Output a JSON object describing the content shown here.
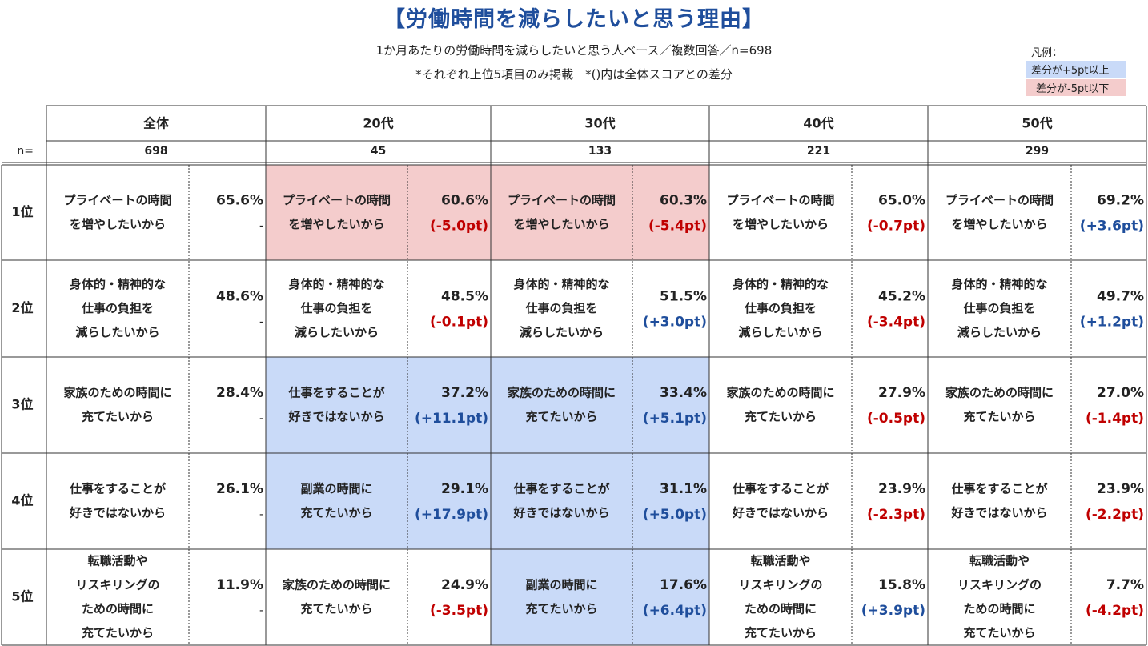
{
  "title": "【労働時間を減らしたいと思う理由】",
  "subtitle": "1か月あたりの労働時間を減らしたいと思う人ベース／複数回答／n=698",
  "note": "*それぞれ上位5項目のみ掲載　*()内は全体スコアとの差分",
  "legend": {
    "title": "凡例：",
    "positive": "差分が+5pt以上",
    "negative": "差分が-5pt以下"
  },
  "colors": {
    "title": "#1f4e9c",
    "positive_fill": "#c9daf8",
    "negative_fill": "#f4cccc",
    "positive_text": "#1f4e9c",
    "negative_text": "#c00000"
  },
  "chart_data": {
    "type": "table",
    "n_label": "n=",
    "rank_labels": [
      "1位",
      "2位",
      "3位",
      "4位",
      "5位"
    ],
    "groups": [
      {
        "name": "全体",
        "n": "698",
        "rows": [
          {
            "reason": [
              "プライベートの時間",
              "を増やしたいから"
            ],
            "value": "65.6%",
            "diff": "-",
            "highlight": "none"
          },
          {
            "reason": [
              "身体的・精神的な",
              "仕事の負担を",
              "減らしたいから"
            ],
            "value": "48.6%",
            "diff": "-",
            "highlight": "none"
          },
          {
            "reason": [
              "家族のための時間に",
              "充てたいから"
            ],
            "value": "28.4%",
            "diff": "-",
            "highlight": "none"
          },
          {
            "reason": [
              "仕事をすることが",
              "好きではないから"
            ],
            "value": "26.1%",
            "diff": "-",
            "highlight": "none"
          },
          {
            "reason": [
              "転職活動や",
              "リスキリングの",
              "ための時間に",
              "充てたいから"
            ],
            "value": "11.9%",
            "diff": "-",
            "highlight": "none"
          }
        ]
      },
      {
        "name": "20代",
        "n": "45",
        "rows": [
          {
            "reason": [
              "プライベートの時間",
              "を増やしたいから"
            ],
            "value": "60.6%",
            "diff": "(-5.0pt)",
            "highlight": "negative"
          },
          {
            "reason": [
              "身体的・精神的な",
              "仕事の負担を",
              "減らしたいから"
            ],
            "value": "48.5%",
            "diff": "(-0.1pt)",
            "highlight": "none"
          },
          {
            "reason": [
              "仕事をすることが",
              "好きではないから"
            ],
            "value": "37.2%",
            "diff": "(+11.1pt)",
            "highlight": "positive"
          },
          {
            "reason": [
              "副業の時間に",
              "充てたいから"
            ],
            "value": "29.1%",
            "diff": "(+17.9pt)",
            "highlight": "positive"
          },
          {
            "reason": [
              "家族のための時間に",
              "充てたいから"
            ],
            "value": "24.9%",
            "diff": "(-3.5pt)",
            "highlight": "none"
          }
        ]
      },
      {
        "name": "30代",
        "n": "133",
        "rows": [
          {
            "reason": [
              "プライベートの時間",
              "を増やしたいから"
            ],
            "value": "60.3%",
            "diff": "(-5.4pt)",
            "highlight": "negative"
          },
          {
            "reason": [
              "身体的・精神的な",
              "仕事の負担を",
              "減らしたいから"
            ],
            "value": "51.5%",
            "diff": "(+3.0pt)",
            "highlight": "none"
          },
          {
            "reason": [
              "家族のための時間に",
              "充てたいから"
            ],
            "value": "33.4%",
            "diff": "(+5.1pt)",
            "highlight": "positive"
          },
          {
            "reason": [
              "仕事をすることが",
              "好きではないから"
            ],
            "value": "31.1%",
            "diff": "(+5.0pt)",
            "highlight": "positive"
          },
          {
            "reason": [
              "副業の時間に",
              "充てたいから"
            ],
            "value": "17.6%",
            "diff": "(+6.4pt)",
            "highlight": "positive"
          }
        ]
      },
      {
        "name": "40代",
        "n": "221",
        "rows": [
          {
            "reason": [
              "プライベートの時間",
              "を増やしたいから"
            ],
            "value": "65.0%",
            "diff": "(-0.7pt)",
            "highlight": "none"
          },
          {
            "reason": [
              "身体的・精神的な",
              "仕事の負担を",
              "減らしたいから"
            ],
            "value": "45.2%",
            "diff": "(-3.4pt)",
            "highlight": "none"
          },
          {
            "reason": [
              "家族のための時間に",
              "充てたいから"
            ],
            "value": "27.9%",
            "diff": "(-0.5pt)",
            "highlight": "none"
          },
          {
            "reason": [
              "仕事をすることが",
              "好きではないから"
            ],
            "value": "23.9%",
            "diff": "(-2.3pt)",
            "highlight": "none"
          },
          {
            "reason": [
              "転職活動や",
              "リスキリングの",
              "ための時間に",
              "充てたいから"
            ],
            "value": "15.8%",
            "diff": "(+3.9pt)",
            "highlight": "none"
          }
        ]
      },
      {
        "name": "50代",
        "n": "299",
        "rows": [
          {
            "reason": [
              "プライベートの時間",
              "を増やしたいから"
            ],
            "value": "69.2%",
            "diff": "(+3.6pt)",
            "highlight": "none"
          },
          {
            "reason": [
              "身体的・精神的な",
              "仕事の負担を",
              "減らしたいから"
            ],
            "value": "49.7%",
            "diff": "(+1.2pt)",
            "highlight": "none"
          },
          {
            "reason": [
              "家族のための時間に",
              "充てたいから"
            ],
            "value": "27.0%",
            "diff": "(-1.4pt)",
            "highlight": "none"
          },
          {
            "reason": [
              "仕事をすることが",
              "好きではないから"
            ],
            "value": "23.9%",
            "diff": "(-2.2pt)",
            "highlight": "none"
          },
          {
            "reason": [
              "転職活動や",
              "リスキリングの",
              "ための時間に",
              "充てたいから"
            ],
            "value": "7.7%",
            "diff": "(-4.2pt)",
            "highlight": "none"
          }
        ]
      }
    ]
  }
}
